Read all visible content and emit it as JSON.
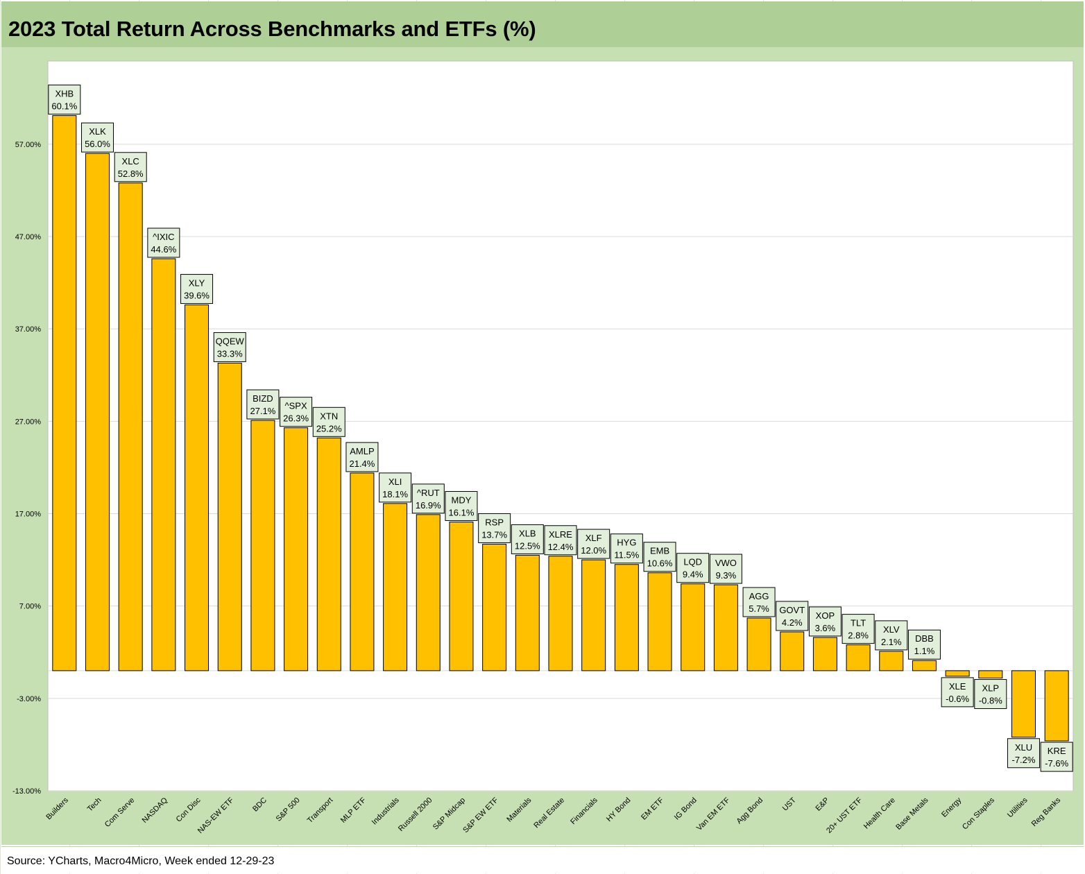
{
  "chart_data": {
    "type": "bar",
    "title": "2023 Total Return Across Benchmarks and ETFs (%)",
    "categories": [
      "Builders",
      "Tech",
      "Com Serve",
      "NASDAQ",
      "Con Disc",
      "NAS-EW ETF",
      "BDC",
      "S&P 500",
      "Transport",
      "MLP ETF",
      "Industrials",
      "Russell 2000",
      "S&P Midcap",
      "S&P EW ETF",
      "Materials",
      "Real Estate",
      "Financials",
      "HY Bond",
      "EM ETF",
      "IG Bond",
      "Van EM ETF",
      "Agg Bond",
      "UST",
      "E&P",
      "20+ UST ETF",
      "Health Care",
      "Base Metals",
      "Energy",
      "Con Staples",
      "Utilities",
      "Reg Banks"
    ],
    "tickers": [
      "XHB",
      "XLK",
      "XLC",
      "^IXIC",
      "XLY",
      "QQEW",
      "BIZD",
      "^SPX",
      "XTN",
      "AMLP",
      "XLI",
      "^RUT",
      "MDY",
      "RSP",
      "XLB",
      "XLRE",
      "XLF",
      "HYG",
      "EMB",
      "LQD",
      "VWO",
      "AGG",
      "GOVT",
      "XOP",
      "TLT",
      "XLV",
      "DBB",
      "XLE",
      "XLP",
      "XLU",
      "KRE"
    ],
    "values": [
      60.1,
      56.0,
      52.8,
      44.6,
      39.6,
      33.3,
      27.1,
      26.3,
      25.2,
      21.4,
      18.1,
      16.9,
      16.1,
      13.7,
      12.5,
      12.4,
      12.0,
      11.5,
      10.6,
      9.4,
      9.3,
      5.7,
      4.2,
      3.6,
      2.8,
      2.1,
      1.1,
      -0.6,
      -0.8,
      -7.2,
      -7.6
    ],
    "data_labels": [
      "60.1%",
      "56.0%",
      "52.8%",
      "44.6%",
      "39.6%",
      "33.3%",
      "27.1%",
      "26.3%",
      "25.2%",
      "21.4%",
      "18.1%",
      "16.9%",
      "16.1%",
      "13.7%",
      "12.5%",
      "12.4%",
      "12.0%",
      "11.5%",
      "10.6%",
      "9.4%",
      "9.3%",
      "5.7%",
      "4.2%",
      "3.6%",
      "2.8%",
      "2.1%",
      "1.1%",
      "-0.6%",
      "-0.8%",
      "-7.2%",
      "-7.6%"
    ],
    "y_ticks": [
      57,
      47,
      37,
      27,
      17,
      7,
      -3,
      -13
    ],
    "y_tick_labels": [
      "57.00%",
      "47.00%",
      "37.00%",
      "27.00%",
      "17.00%",
      "7.00%",
      "-3.00%",
      "-13.00%"
    ],
    "ylim": [
      -13,
      66
    ],
    "xlabel": "",
    "ylabel": "",
    "grid": true,
    "legend": "none",
    "bar_color": "#ffc000",
    "label_box_color": "#e2efda",
    "frame_color": "#c6e0b4"
  },
  "header": {
    "title": "2023 Total Return Across Benchmarks and ETFs (%)",
    "background": "#aed096"
  },
  "footer": {
    "source": "Source: YCharts, Macro4Micro, Week ended 12-29-23"
  }
}
